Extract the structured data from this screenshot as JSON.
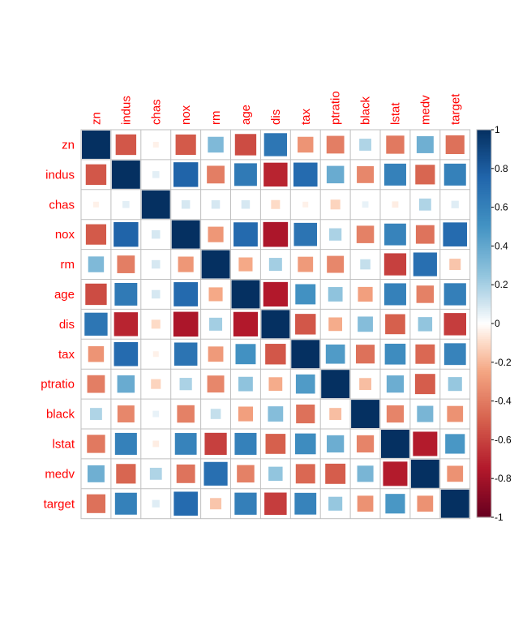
{
  "chart_data": {
    "type": "heatmap",
    "variables": [
      "zn",
      "indus",
      "chas",
      "nox",
      "rm",
      "age",
      "dis",
      "tax",
      "ptratio",
      "black",
      "lstat",
      "medv",
      "target"
    ],
    "matrix": [
      [
        1.0,
        -0.53,
        -0.04,
        -0.52,
        0.31,
        -0.57,
        0.66,
        -0.31,
        -0.39,
        0.18,
        -0.41,
        0.36,
        -0.44
      ],
      [
        -0.53,
        1.0,
        0.06,
        0.76,
        -0.39,
        0.64,
        -0.71,
        0.72,
        0.38,
        -0.36,
        0.6,
        -0.48,
        0.6
      ],
      [
        -0.04,
        0.06,
        1.0,
        0.09,
        0.09,
        0.09,
        -0.1,
        -0.04,
        -0.12,
        0.05,
        -0.05,
        0.18,
        0.07
      ],
      [
        -0.52,
        0.76,
        0.09,
        1.0,
        -0.3,
        0.73,
        -0.77,
        0.67,
        0.19,
        -0.38,
        0.59,
        -0.43,
        0.72
      ],
      [
        0.31,
        -0.39,
        0.09,
        -0.3,
        1.0,
        -0.24,
        0.21,
        -0.29,
        -0.36,
        0.13,
        -0.61,
        0.7,
        -0.16
      ],
      [
        -0.57,
        0.64,
        0.09,
        0.73,
        -0.24,
        1.0,
        -0.75,
        0.51,
        0.26,
        -0.27,
        0.6,
        -0.38,
        0.61
      ],
      [
        0.66,
        -0.71,
        -0.1,
        -0.77,
        0.21,
        -0.75,
        1.0,
        -0.53,
        -0.23,
        0.29,
        -0.5,
        0.25,
        -0.62
      ],
      [
        -0.31,
        0.72,
        -0.04,
        0.67,
        -0.29,
        0.51,
        -0.53,
        1.0,
        0.46,
        -0.44,
        0.54,
        -0.47,
        0.59
      ],
      [
        -0.39,
        0.38,
        -0.12,
        0.19,
        -0.36,
        0.26,
        -0.23,
        0.46,
        1.0,
        -0.18,
        0.37,
        -0.51,
        0.24
      ],
      [
        0.18,
        -0.36,
        0.05,
        -0.38,
        0.13,
        -0.27,
        0.29,
        -0.44,
        -0.18,
        1.0,
        -0.37,
        0.33,
        -0.32
      ],
      [
        -0.41,
        0.6,
        -0.05,
        0.59,
        -0.61,
        0.6,
        -0.5,
        0.54,
        0.37,
        -0.37,
        1.0,
        -0.74,
        0.48
      ],
      [
        0.36,
        -0.48,
        0.18,
        -0.43,
        0.7,
        -0.38,
        0.25,
        -0.47,
        -0.51,
        0.33,
        -0.74,
        1.0,
        -0.32
      ],
      [
        -0.44,
        0.6,
        0.07,
        0.72,
        -0.16,
        0.61,
        -0.62,
        0.59,
        0.24,
        -0.32,
        0.48,
        -0.32,
        1.0
      ]
    ],
    "colorbar": {
      "range": [
        -1,
        1
      ],
      "ticks": [
        "-1",
        "-0.8",
        "-0.6",
        "-0.4",
        "-0.2",
        "0",
        "0.2",
        "0.4",
        "0.6",
        "0.8",
        "1"
      ]
    },
    "label_color": "#ff0000",
    "grid_color": "#bfbfbf"
  }
}
